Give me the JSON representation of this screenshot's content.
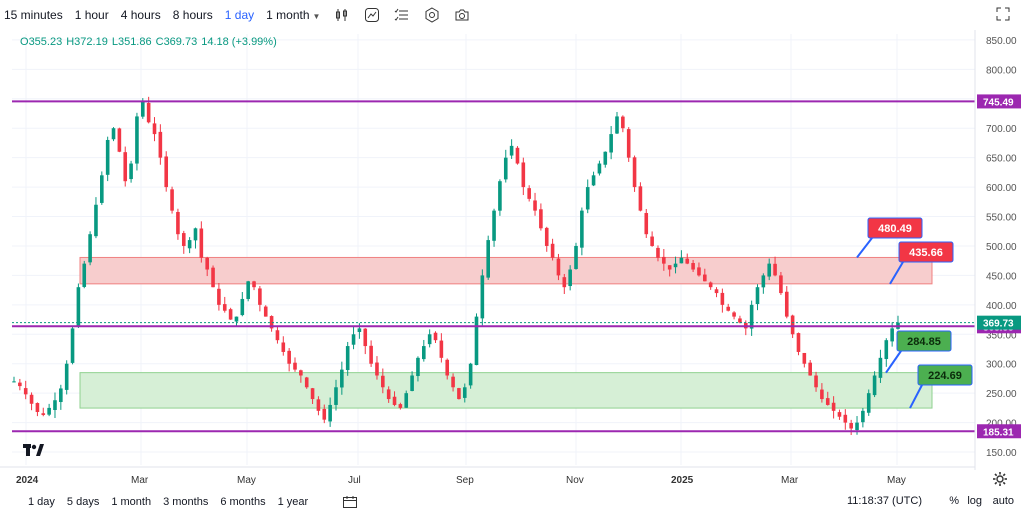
{
  "toolbar": {
    "timeframes": [
      "15 minutes",
      "1 hour",
      "4 hours",
      "8 hours",
      "1 day",
      "1 month"
    ],
    "active_timeframe": "1 day"
  },
  "ohlc": {
    "open_label": "O",
    "open": "355.23",
    "high_label": "H",
    "high": "372.19",
    "low_label": "L",
    "low": "351.86",
    "close_label": "C",
    "close": "369.73",
    "change": "14.18 (+3.99%)"
  },
  "bottom": {
    "ranges": [
      "1 day",
      "5 days",
      "1 month",
      "3 months",
      "6 months",
      "1 year"
    ],
    "time": "11:18:37 (UTC)",
    "percent": "%",
    "log": "log",
    "auto": "auto"
  },
  "chart_data": {
    "type": "candlestick",
    "x_ticks": [
      "2024",
      "Mar",
      "May",
      "Jul",
      "Sep",
      "Nov",
      "2025",
      "Mar",
      "May"
    ],
    "y_ticks": [
      150,
      200,
      250,
      300,
      350,
      400,
      450,
      500,
      550,
      600,
      650,
      700,
      750,
      800,
      850
    ],
    "ylim": [
      128,
      860
    ],
    "horizontal_levels": [
      {
        "value": 745.49,
        "label": "745.49",
        "color": "#9c27b0"
      },
      {
        "value": 363.55,
        "label": "363.55",
        "color": "#9c27b0"
      },
      {
        "value": 185.31,
        "label": "185.31",
        "color": "#9c27b0"
      }
    ],
    "current_price": {
      "value": 369.73,
      "label": "369.73",
      "color": "#089981"
    },
    "zones": [
      {
        "name": "resistance",
        "from": 435.66,
        "to": 480.49,
        "color": "#f7cdcd"
      },
      {
        "name": "support",
        "from": 224.69,
        "to": 284.85,
        "color": "#d6efd6"
      }
    ],
    "callouts": [
      {
        "label": "480.49",
        "value": 480.49,
        "color": "#f23645"
      },
      {
        "label": "435.66",
        "value": 435.66,
        "color": "#f23645"
      },
      {
        "label": "284.85",
        "value": 284.85,
        "color": "#4caf50"
      },
      {
        "label": "224.69",
        "value": 224.69,
        "color": "#4caf50"
      }
    ],
    "closes": [
      270,
      262,
      248,
      232,
      218,
      213,
      225,
      238,
      258,
      300,
      360,
      430,
      470,
      520,
      570,
      620,
      680,
      700,
      660,
      610,
      640,
      720,
      745,
      710,
      690,
      650,
      600,
      560,
      520,
      500,
      510,
      530,
      480,
      460,
      430,
      400,
      390,
      375,
      380,
      410,
      440,
      430,
      400,
      380,
      360,
      340,
      320,
      300,
      290,
      280,
      260,
      240,
      220,
      205,
      230,
      260,
      290,
      330,
      350,
      360,
      330,
      300,
      280,
      260,
      240,
      230,
      225,
      250,
      280,
      310,
      330,
      350,
      340,
      310,
      280,
      260,
      240,
      260,
      300,
      380,
      450,
      510,
      560,
      610,
      650,
      670,
      640,
      600,
      580,
      560,
      530,
      500,
      480,
      450,
      430,
      460,
      500,
      560,
      600,
      620,
      640,
      660,
      690,
      720,
      700,
      650,
      600,
      560,
      520,
      500,
      480,
      470,
      460,
      470,
      480,
      470,
      460,
      450,
      440,
      430,
      420,
      400,
      390,
      380,
      370,
      360,
      400,
      430,
      450,
      470,
      450,
      420,
      380,
      350,
      320,
      300,
      280,
      260,
      240,
      230,
      220,
      210,
      200,
      190,
      200,
      220,
      250,
      280,
      310,
      340,
      360,
      369.73
    ],
    "colors": {
      "up": "#089981",
      "down": "#f23645",
      "level": "#9c27b0",
      "grid": "#f0f3fa"
    }
  }
}
